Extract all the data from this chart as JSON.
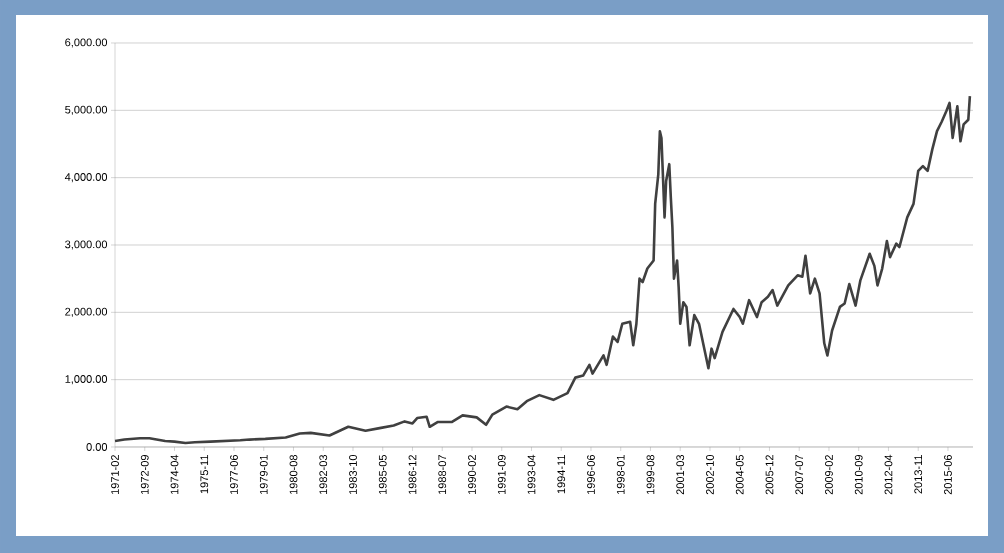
{
  "chart_data": {
    "type": "line",
    "color": "#404040",
    "grid": "y",
    "marker": "none",
    "line_style": "solid",
    "x": [
      "1971-02",
      "1971-08",
      "1972-06",
      "1972-12",
      "1973-10",
      "1974-04",
      "1974-11",
      "1975-05",
      "1976-03",
      "1977-10",
      "1978-04",
      "1979-02",
      "1980-03",
      "1980-12",
      "1981-07",
      "1982-01",
      "1982-07",
      "1983-07",
      "1984-06",
      "1985-03",
      "1985-12",
      "1986-07",
      "1986-12",
      "1987-03",
      "1987-09",
      "1987-11",
      "1988-04",
      "1989-01",
      "1989-08",
      "1990-05",
      "1990-11",
      "1991-03",
      "1991-12",
      "1992-07",
      "1993-01",
      "1993-09",
      "1994-06",
      "1995-03",
      "1995-08",
      "1996-01",
      "1996-05",
      "1996-07",
      "1997-02",
      "1997-04",
      "1997-08",
      "1997-11",
      "1998-02",
      "1998-07",
      "1998-09",
      "1998-11",
      "1999-01",
      "1999-03",
      "1999-06",
      "1999-10",
      "1999-11",
      "2000-01",
      "2000-02",
      "2000-03",
      "2000-05",
      "2000-06",
      "2000-08",
      "2000-09",
      "2000-10",
      "2000-11",
      "2001-01",
      "2001-02",
      "2001-03",
      "2001-05",
      "2001-07",
      "2001-09",
      "2001-12",
      "2002-03",
      "2002-09",
      "2002-11",
      "2003-01",
      "2003-06",
      "2004-01",
      "2004-05",
      "2004-07",
      "2004-11",
      "2005-04",
      "2005-07",
      "2005-11",
      "2006-02",
      "2006-05",
      "2006-12",
      "2007-06",
      "2007-09",
      "2007-11",
      "2008-02",
      "2008-05",
      "2008-08",
      "2008-11",
      "2009-01",
      "2009-04",
      "2009-09",
      "2009-12",
      "2010-03",
      "2010-07",
      "2010-10",
      "2011-04",
      "2011-07",
      "2011-09",
      "2011-12",
      "2012-03",
      "2012-05",
      "2012-09",
      "2012-11",
      "2013-04",
      "2013-08",
      "2013-11",
      "2014-02",
      "2014-05",
      "2014-08",
      "2014-11",
      "2015-02",
      "2015-05",
      "2015-07",
      "2015-09",
      "2015-12",
      "2016-02",
      "2016-04",
      "2016-07",
      "2016-08"
    ],
    "values": [
      90,
      110,
      130,
      130,
      90,
      80,
      60,
      70,
      80,
      100,
      110,
      120,
      140,
      200,
      210,
      190,
      170,
      300,
      240,
      280,
      320,
      380,
      350,
      430,
      450,
      300,
      370,
      370,
      470,
      440,
      330,
      480,
      600,
      560,
      680,
      770,
      700,
      800,
      1030,
      1060,
      1220,
      1090,
      1360,
      1220,
      1640,
      1560,
      1830,
      1860,
      1510,
      1830,
      2500,
      2450,
      2650,
      2770,
      3610,
      4050,
      4690,
      4590,
      3410,
      3950,
      4200,
      3700,
      3260,
      2500,
      2770,
      2370,
      1830,
      2150,
      2080,
      1510,
      1960,
      1830,
      1170,
      1460,
      1320,
      1710,
      2050,
      1930,
      1830,
      2180,
      1930,
      2150,
      2230,
      2330,
      2100,
      2400,
      2550,
      2530,
      2840,
      2280,
      2500,
      2280,
      1540,
      1360,
      1730,
      2080,
      2130,
      2420,
      2100,
      2470,
      2870,
      2690,
      2400,
      2650,
      3060,
      2820,
      3020,
      2970,
      3410,
      3610,
      4100,
      4170,
      4100,
      4420,
      4690,
      4830,
      4990,
      5110,
      4590,
      5060,
      4540,
      4790,
      4860,
      5210
    ],
    "xlim": [
      "1971-02",
      "2016-10"
    ],
    "xticks": [
      "1971-02",
      "1972-09",
      "1974-04",
      "1975-11",
      "1977-06",
      "1979-01",
      "1980-08",
      "1982-03",
      "1983-10",
      "1985-05",
      "1986-12",
      "1988-07",
      "1990-02",
      "1991-09",
      "1993-04",
      "1994-11",
      "1996-06",
      "1998-01",
      "1999-08",
      "2001-03",
      "2002-10",
      "2004-05",
      "2005-12",
      "2007-07",
      "2009-02",
      "2010-09",
      "2012-04",
      "2013-11",
      "2015-06"
    ],
    "ylim": [
      0,
      6000
    ],
    "yticks": [
      {
        "value": 0,
        "label": "0.00"
      },
      {
        "value": 1000,
        "label": "1,000.00"
      },
      {
        "value": 2000,
        "label": "2,000.00"
      },
      {
        "value": 3000,
        "label": "3,000.00"
      },
      {
        "value": 4000,
        "label": "4,000.00"
      },
      {
        "value": 5000,
        "label": "5,000.00"
      },
      {
        "value": 6000,
        "label": "6,000.00"
      }
    ]
  }
}
